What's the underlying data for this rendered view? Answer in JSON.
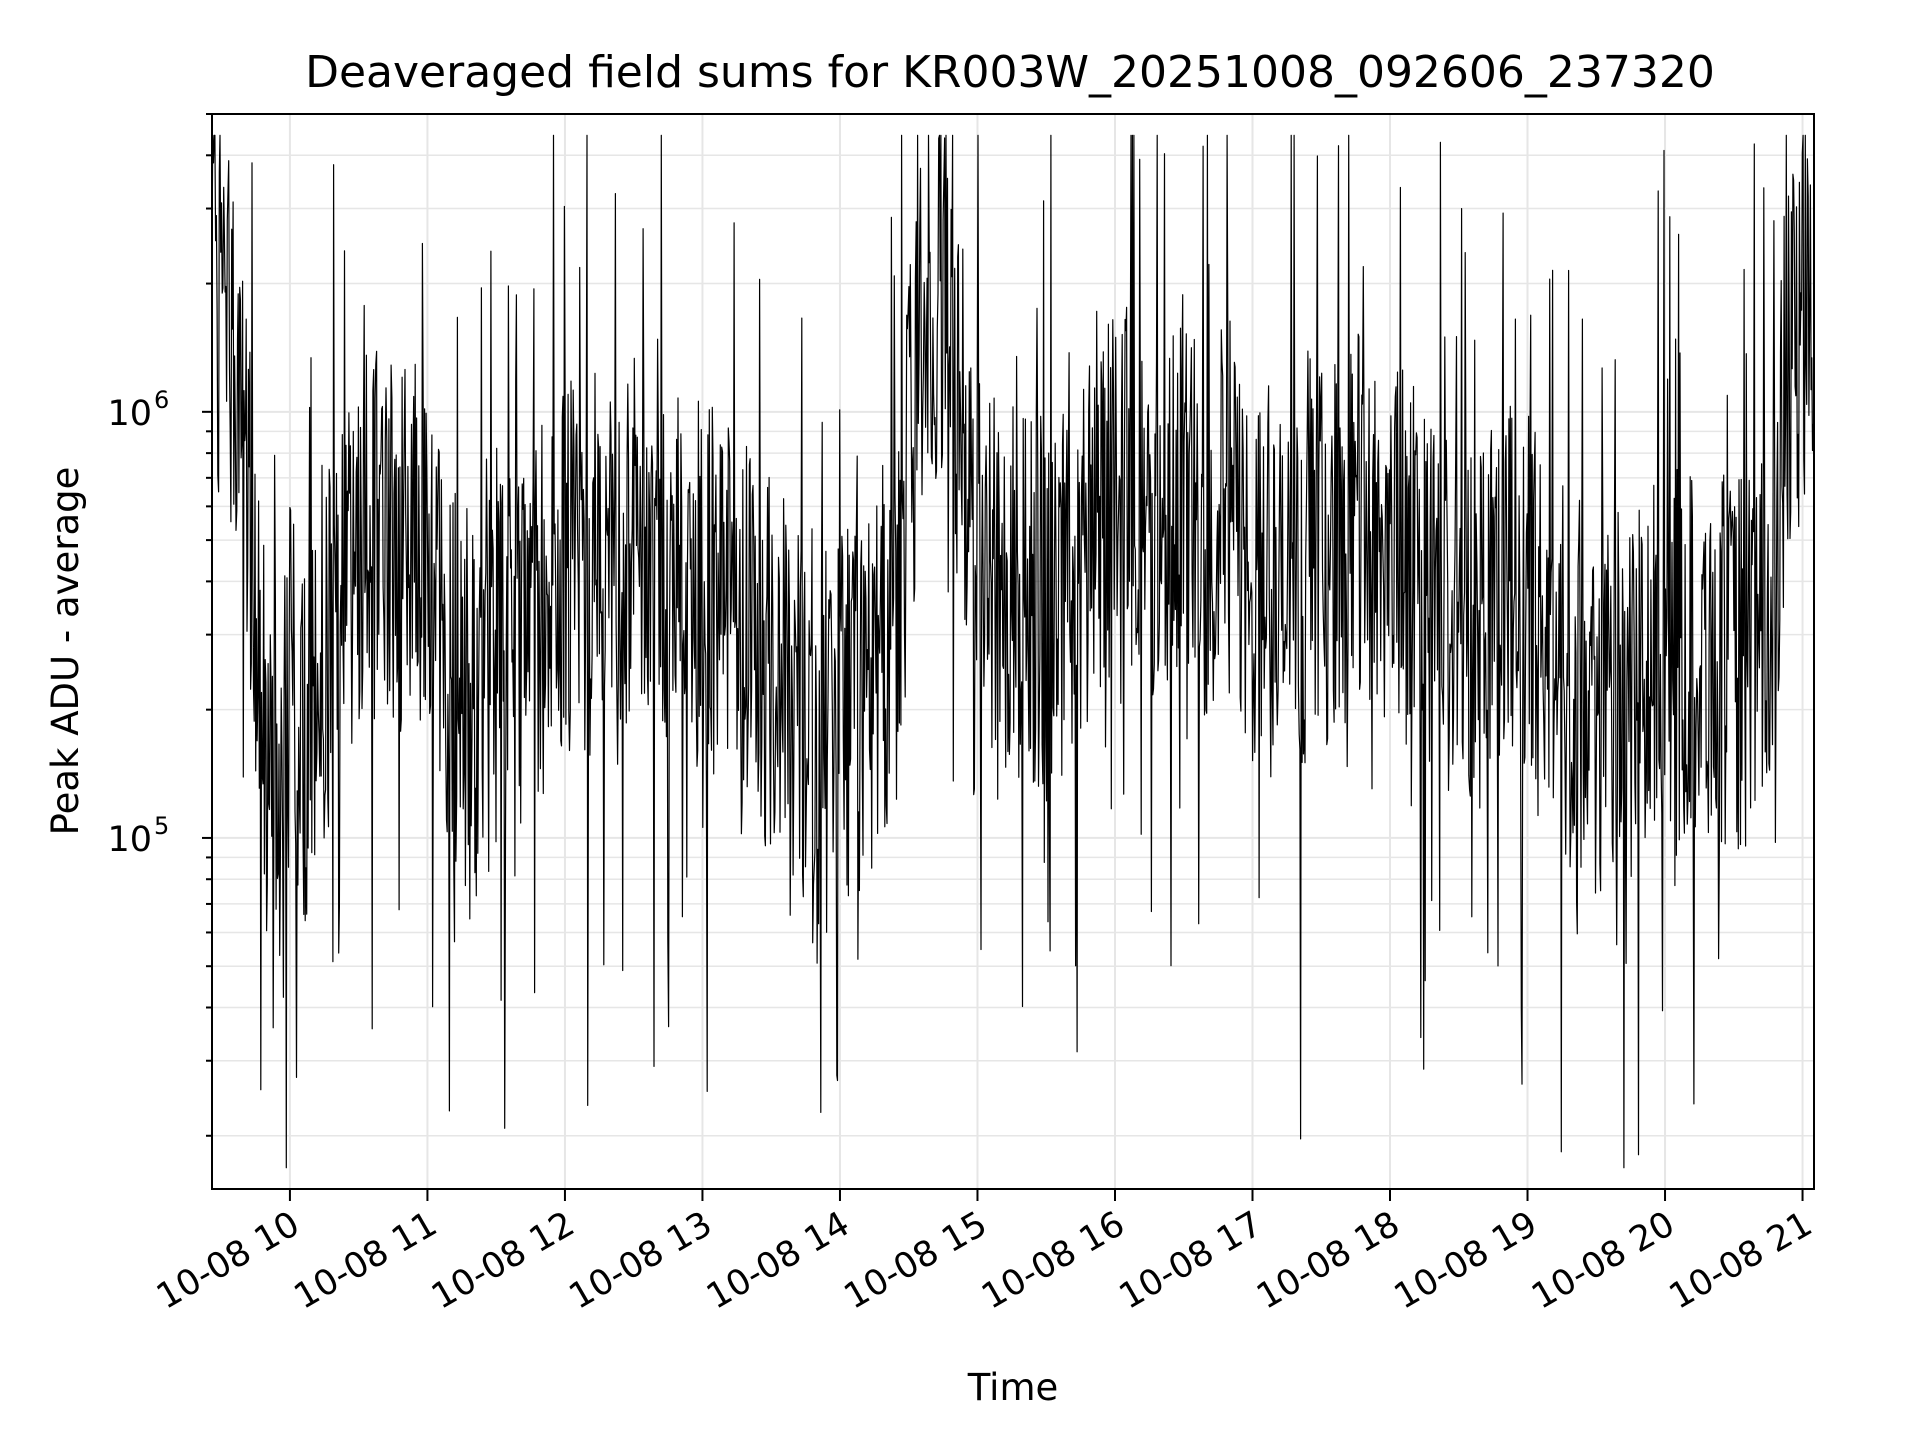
{
  "chart_data": {
    "type": "line",
    "title": "Deaveraged field sums for KR003W_20251008_092606_237320",
    "xlabel": "Time",
    "ylabel": "Peak ADU - average",
    "yscale": "log",
    "xlim": [
      "10-08 09:26",
      "10-08 21:05"
    ],
    "ylim": [
      15000,
      5000000
    ],
    "grid": true,
    "line_color": "#000000",
    "x_ticks": [
      {
        "label": "10-08 10",
        "hour": 10
      },
      {
        "label": "10-08 11",
        "hour": 11
      },
      {
        "label": "10-08 12",
        "hour": 12
      },
      {
        "label": "10-08 13",
        "hour": 13
      },
      {
        "label": "10-08 14",
        "hour": 14
      },
      {
        "label": "10-08 15",
        "hour": 15
      },
      {
        "label": "10-08 16",
        "hour": 16
      },
      {
        "label": "10-08 17",
        "hour": 17
      },
      {
        "label": "10-08 18",
        "hour": 18
      },
      {
        "label": "10-08 19",
        "hour": 19
      },
      {
        "label": "10-08 20",
        "hour": 20
      },
      {
        "label": "10-08 21",
        "hour": 21
      }
    ],
    "y_ticks": [
      {
        "base": "10",
        "exp": "5",
        "value": 100000
      },
      {
        "base": "10",
        "exp": "6",
        "value": 1000000
      }
    ],
    "series": [
      {
        "x": [
          "10-08 09:26",
          "10-08 09:30",
          "10-08 09:36",
          "10-08 09:40",
          "10-08 09:45",
          "10-08 09:50",
          "10-08 09:53",
          "10-08 09:55",
          "10-08 10:00",
          "10-08 10:05",
          "10-08 10:10",
          "10-08 10:15",
          "10-08 10:20",
          "10-08 10:25",
          "10-08 10:30",
          "10-08 10:40",
          "10-08 10:50",
          "10-08 11:00",
          "10-08 11:10",
          "10-08 11:15",
          "10-08 11:20",
          "10-08 11:30",
          "10-08 11:40",
          "10-08 11:50",
          "10-08 12:00",
          "10-08 12:15",
          "10-08 12:30",
          "10-08 12:45",
          "10-08 13:00",
          "10-08 13:15",
          "10-08 13:30",
          "10-08 13:45",
          "10-08 14:00",
          "10-08 14:15",
          "10-08 14:25",
          "10-08 14:35",
          "10-08 14:45",
          "10-08 14:55",
          "10-08 15:05",
          "10-08 15:15",
          "10-08 15:30",
          "10-08 15:45",
          "10-08 16:00",
          "10-08 16:15",
          "10-08 16:30",
          "10-08 16:40",
          "10-08 16:50",
          "10-08 17:00",
          "10-08 17:15",
          "10-08 17:30",
          "10-08 17:45",
          "10-08 18:00",
          "10-08 18:15",
          "10-08 18:30",
          "10-08 18:45",
          "10-08 19:00",
          "10-08 19:15",
          "10-08 19:30",
          "10-08 19:45",
          "10-08 20:00",
          "10-08 20:15",
          "10-08 20:30",
          "10-08 20:45",
          "10-08 20:55",
          "10-08 21:05"
        ],
        "y": [
          1800000,
          1700000,
          1500000,
          800000,
          400000,
          130000,
          90000,
          70000,
          220000,
          150000,
          180000,
          250000,
          350000,
          450000,
          500000,
          550000,
          480000,
          450000,
          250000,
          220000,
          200000,
          250000,
          280000,
          350000,
          420000,
          420000,
          550000,
          400000,
          380000,
          350000,
          250000,
          200000,
          180000,
          230000,
          350000,
          1500000,
          1800000,
          800000,
          450000,
          400000,
          300000,
          450000,
          700000,
          600000,
          700000,
          500000,
          600000,
          400000,
          350000,
          450000,
          550000,
          500000,
          400000,
          300000,
          450000,
          350000,
          250000,
          200000,
          220000,
          260000,
          270000,
          250000,
          300000,
          1400000,
          1600000
        ]
      }
    ]
  }
}
